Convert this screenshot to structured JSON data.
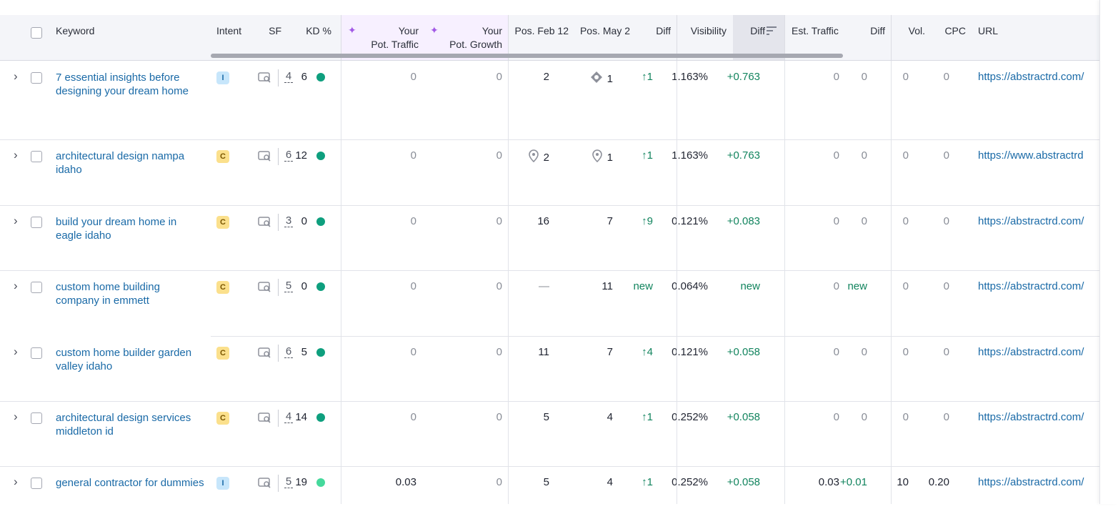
{
  "header": {
    "keyword": "Keyword",
    "intent": "Intent",
    "sf": "SF",
    "kd": "KD %",
    "pot_traffic_1": "Your",
    "pot_traffic_2": "Pot. Traffic",
    "pot_growth_1": "Your",
    "pot_growth_2": "Pot. Growth",
    "pos_feb": "Pos. Feb 12",
    "pos_may": "Pos. May 2",
    "diff": "Diff",
    "visibility": "Visibility",
    "vis_diff": "Diff",
    "est_traffic": "Est. Traffic",
    "traffic_diff": "Diff",
    "vol": "Vol.",
    "cpc": "CPC",
    "url": "URL"
  },
  "rows": [
    {
      "keyword": "7 essential insights before designing your dream home",
      "intent": "I",
      "sf": "4",
      "kd": "6",
      "kd_light": false,
      "pot_traffic": "0",
      "pot_growth": "0",
      "pos_feb": "2",
      "pos_feb_icon": "",
      "pos_may": "1",
      "pos_may_icon": "featured-snippet-icon",
      "diff": "↑1",
      "visibility": "1.163%",
      "vis_diff": "+0.763",
      "est_traffic": "0",
      "traffic_diff": "0",
      "vol": "0",
      "cpc": "0",
      "url": "https://abstractrd.com/"
    },
    {
      "keyword": "architectural design nampa idaho",
      "intent": "C",
      "sf": "6",
      "kd": "12",
      "kd_light": false,
      "pot_traffic": "0",
      "pot_growth": "0",
      "pos_feb": "2",
      "pos_feb_icon": "local-pack-icon",
      "pos_may": "1",
      "pos_may_icon": "local-pack-icon",
      "diff": "↑1",
      "visibility": "1.163%",
      "vis_diff": "+0.763",
      "est_traffic": "0",
      "traffic_diff": "0",
      "vol": "0",
      "cpc": "0",
      "url": "https://www.abstractrd"
    },
    {
      "keyword": "build your dream home in eagle idaho",
      "intent": "C",
      "sf": "3",
      "kd": "0",
      "kd_light": false,
      "pot_traffic": "0",
      "pot_growth": "0",
      "pos_feb": "16",
      "pos_feb_icon": "",
      "pos_may": "7",
      "pos_may_icon": "",
      "diff": "↑9",
      "visibility": "0.121%",
      "vis_diff": "+0.083",
      "est_traffic": "0",
      "traffic_diff": "0",
      "vol": "0",
      "cpc": "0",
      "url": "https://abstractrd.com/"
    },
    {
      "keyword": "custom home building company in emmett",
      "intent": "C",
      "sf": "5",
      "kd": "0",
      "kd_light": false,
      "pot_traffic": "0",
      "pot_growth": "0",
      "pos_feb": "—",
      "pos_feb_icon": "",
      "pos_may": "11",
      "pos_may_icon": "",
      "diff": "new",
      "visibility": "0.064%",
      "vis_diff": "new",
      "est_traffic": "0",
      "traffic_diff": "new",
      "vol": "0",
      "cpc": "0",
      "url": "https://abstractrd.com/"
    },
    {
      "keyword": "custom home builder garden valley idaho",
      "intent": "C",
      "sf": "6",
      "kd": "5",
      "kd_light": false,
      "pot_traffic": "0",
      "pot_growth": "0",
      "pos_feb": "11",
      "pos_feb_icon": "",
      "pos_may": "7",
      "pos_may_icon": "",
      "diff": "↑4",
      "visibility": "0.121%",
      "vis_diff": "+0.058",
      "est_traffic": "0",
      "traffic_diff": "0",
      "vol": "0",
      "cpc": "0",
      "url": "https://abstractrd.com/"
    },
    {
      "keyword": "architectural design services middleton id",
      "intent": "C",
      "sf": "4",
      "kd": "14",
      "kd_light": false,
      "pot_traffic": "0",
      "pot_growth": "0",
      "pos_feb": "5",
      "pos_feb_icon": "",
      "pos_may": "4",
      "pos_may_icon": "",
      "diff": "↑1",
      "visibility": "0.252%",
      "vis_diff": "+0.058",
      "est_traffic": "0",
      "traffic_diff": "0",
      "vol": "0",
      "cpc": "0",
      "url": "https://abstractrd.com/"
    },
    {
      "keyword": "general contractor for dummies",
      "intent": "I",
      "sf": "5",
      "kd": "19",
      "kd_light": true,
      "pot_traffic": "0.03",
      "pot_growth": "0",
      "pos_feb": "5",
      "pos_feb_icon": "",
      "pos_may": "4",
      "pos_may_icon": "",
      "diff": "↑1",
      "visibility": "0.252%",
      "vis_diff": "+0.058",
      "est_traffic": "0.03",
      "traffic_diff": "+0.01",
      "vol": "10",
      "cpc": "0.20",
      "url": "https://abstractrd.com/"
    }
  ],
  "colors": {
    "link": "#1a6aa7",
    "positive": "#12845e",
    "accent": "#a259e6"
  }
}
